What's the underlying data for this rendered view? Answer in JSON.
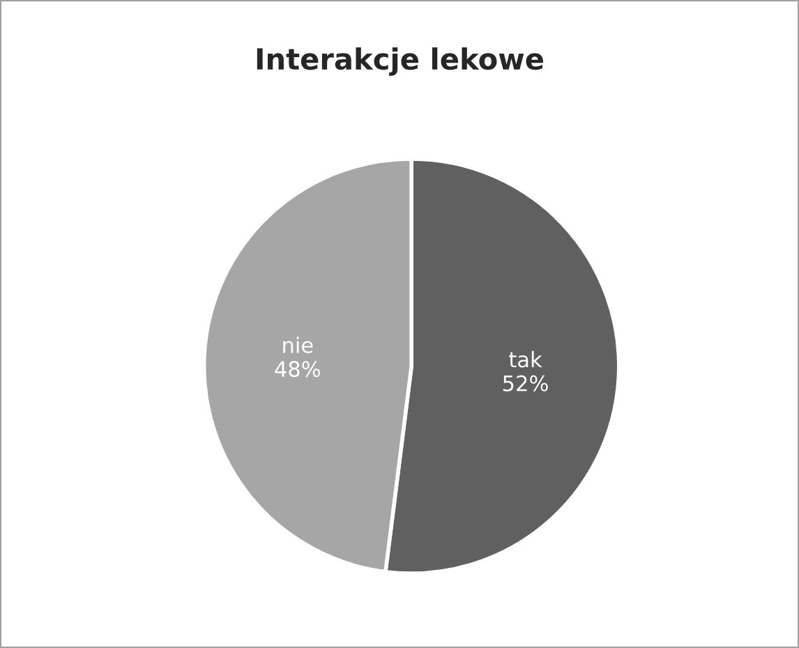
{
  "chart_data": {
    "type": "pie",
    "title": "Interakcje lekowe",
    "categories": [
      "tak",
      "nie"
    ],
    "values": [
      52,
      48
    ],
    "colors": [
      "#606060",
      "#a6a6a6"
    ],
    "value_labels": [
      "52%",
      "48%"
    ]
  }
}
